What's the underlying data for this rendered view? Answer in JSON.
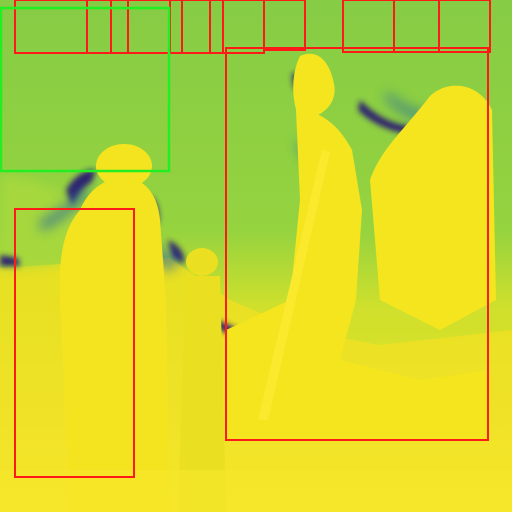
{
  "image": {
    "kind": "depth-map visualization with detection boxes",
    "colormap": [
      "#440154",
      "#3b528b",
      "#21918c",
      "#5ec962",
      "#fde725"
    ],
    "palette": {
      "far": "#7fc84a",
      "mid": "#9ad63f",
      "near": "#f0e21a",
      "nearest": "#f6e62a",
      "edge_dark": "#2e1d6b",
      "edge_mid": "#2f6f9a"
    }
  },
  "annotations": {
    "primary_box_color": "#ff1a1a",
    "highlight_box_color": "#22ee22",
    "box_count": 13,
    "highlight_count": 1
  }
}
